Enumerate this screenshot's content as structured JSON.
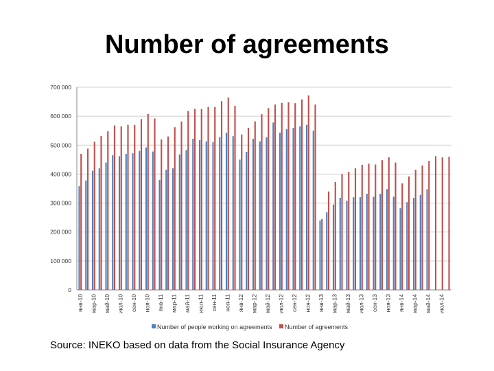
{
  "slide": {
    "title": "Number of agreements",
    "source": "Source: INEKO based on data from the Social Insurance Agency"
  },
  "chart_data": {
    "type": "bar",
    "title": "Number of agreements",
    "xlabel": "",
    "ylabel": "",
    "ylim": [
      0,
      700000
    ],
    "grid": true,
    "legend": "bottom",
    "ytick_labels": [
      "0",
      "100 000",
      "200 000",
      "300 000",
      "400 000",
      "500 000",
      "600 000",
      "700 000"
    ],
    "categories": [
      "янв-10",
      "фев-10",
      "мар-10",
      "апр-10",
      "май-10",
      "июн-10",
      "июл-10",
      "авг-10",
      "сен-10",
      "окт-10",
      "ноя-10",
      "дек-10",
      "янв-11",
      "фев-11",
      "мар-11",
      "апр-11",
      "май-11",
      "июн-11",
      "июл-11",
      "авг-11",
      "сен-11",
      "окт-11",
      "ноя-11",
      "дек-11",
      "янв-12",
      "фев-12",
      "мар-12",
      "апр-12",
      "май-12",
      "июн-12",
      "июл-12",
      "авг-12",
      "сен-12",
      "окт-12",
      "ноя-12",
      "дек-12",
      "янв-13",
      "фев-13",
      "мар-13",
      "апр-13",
      "май-13",
      "июн-13",
      "июл-13",
      "авг-13",
      "сен-13",
      "окт-13",
      "ноя-13",
      "дек-13",
      "янв-14",
      "фев-14",
      "мар-14",
      "апр-14",
      "май-14",
      "июн-14",
      "июл-14",
      "авг-14"
    ],
    "x_tick_labels": [
      "янв-10",
      "мар-10",
      "май-10",
      "июл-10",
      "сен-10",
      "ноя-10",
      "янв-11",
      "мар-11",
      "май-11",
      "июл-11",
      "сен-11",
      "ноя-11",
      "янв-12",
      "мар-12",
      "май-12",
      "июл-12",
      "сен-12",
      "ноя-12",
      "янв-13",
      "мар-13",
      "май-13",
      "июл-13",
      "сен-13",
      "ноя-13",
      "янв-14",
      "мар-14",
      "май-14",
      "июл-14"
    ],
    "series": [
      {
        "name": "Number of people working on agreements",
        "color": "#4F81BD",
        "values": [
          358000,
          378000,
          412000,
          420000,
          440000,
          465000,
          462000,
          470000,
          472000,
          480000,
          492000,
          478000,
          380000,
          415000,
          420000,
          468000,
          483000,
          522000,
          517000,
          513000,
          510000,
          528000,
          543000,
          531000,
          450000,
          477000,
          522000,
          513000,
          527000,
          578000,
          543000,
          555000,
          560000,
          565000,
          570000,
          550000,
          240000,
          268000,
          295000,
          318000,
          308000,
          320000,
          320000,
          332000,
          322000,
          332000,
          348000,
          322000,
          282000,
          303000,
          318000,
          328000,
          348000,
          0,
          0,
          0
        ]
      },
      {
        "name": "Number of agreements",
        "color": "#C0504D",
        "values": [
          470000,
          488000,
          512000,
          532000,
          548000,
          568000,
          565000,
          570000,
          570000,
          590000,
          608000,
          592000,
          520000,
          530000,
          562000,
          582000,
          618000,
          625000,
          625000,
          632000,
          632000,
          652000,
          665000,
          636000,
          537000,
          560000,
          582000,
          607000,
          628000,
          640000,
          646000,
          648000,
          645000,
          658000,
          672000,
          640000,
          245000,
          340000,
          373000,
          400000,
          408000,
          420000,
          432000,
          436000,
          433000,
          448000,
          458000,
          440000,
          368000,
          392000,
          415000,
          430000,
          446000,
          462000,
          458000,
          460000
        ]
      }
    ]
  }
}
